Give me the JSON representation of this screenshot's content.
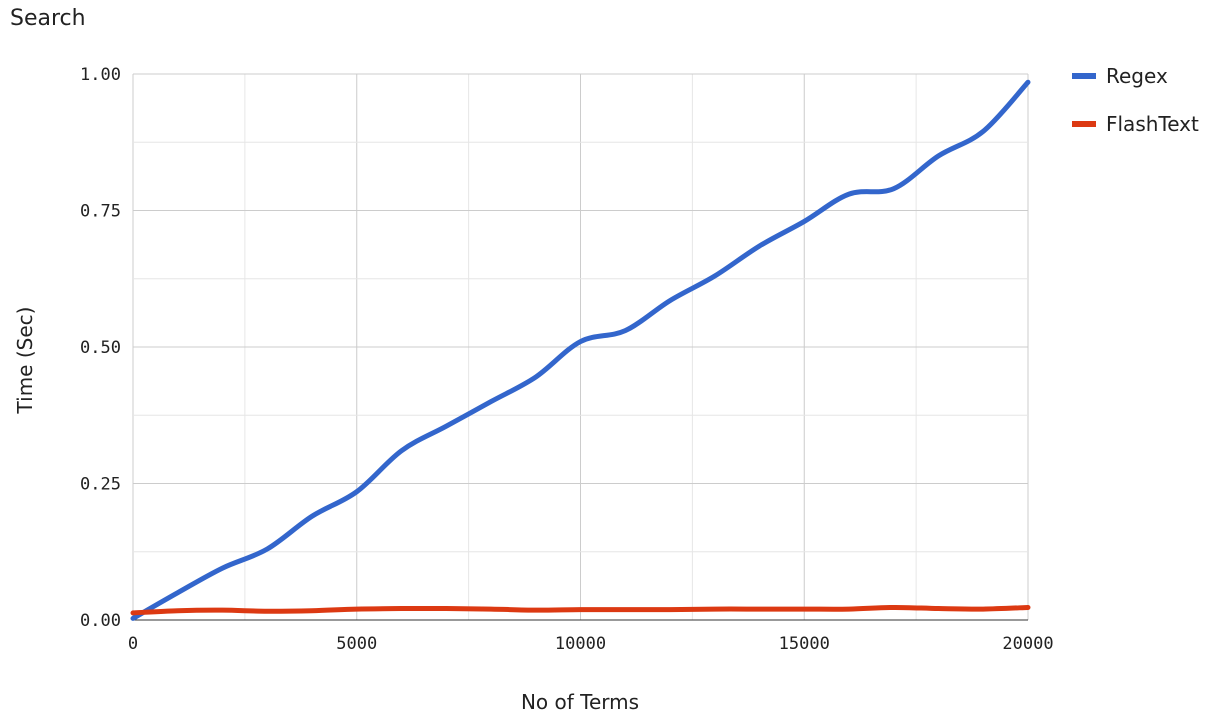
{
  "chart_data": {
    "type": "line",
    "title": "Search",
    "xlabel": "No of Terms",
    "ylabel": "Time (Sec)",
    "xlim": [
      0,
      20000
    ],
    "ylim": [
      0,
      1.0
    ],
    "x_ticks": [
      0,
      5000,
      10000,
      15000,
      20000
    ],
    "y_ticks": [
      "0.00",
      "0.25",
      "0.50",
      "0.75",
      "1.00"
    ],
    "grid": true,
    "legend_position": "right",
    "x": [
      0,
      1000,
      2000,
      3000,
      4000,
      5000,
      6000,
      7000,
      8000,
      9000,
      10000,
      11000,
      12000,
      13000,
      14000,
      15000,
      16000,
      17000,
      18000,
      19000,
      20000
    ],
    "series": [
      {
        "name": "Regex",
        "color": "#3366cc",
        "values": [
          0.003,
          0.05,
          0.095,
          0.13,
          0.19,
          0.235,
          0.31,
          0.355,
          0.4,
          0.445,
          0.51,
          0.53,
          0.585,
          0.63,
          0.685,
          0.73,
          0.78,
          0.79,
          0.85,
          0.895,
          0.985
        ]
      },
      {
        "name": "FlashText",
        "color": "#dc3912",
        "values": [
          0.013,
          0.017,
          0.018,
          0.016,
          0.017,
          0.02,
          0.021,
          0.021,
          0.02,
          0.018,
          0.019,
          0.019,
          0.019,
          0.02,
          0.02,
          0.02,
          0.02,
          0.023,
          0.021,
          0.02,
          0.023
        ]
      }
    ]
  }
}
